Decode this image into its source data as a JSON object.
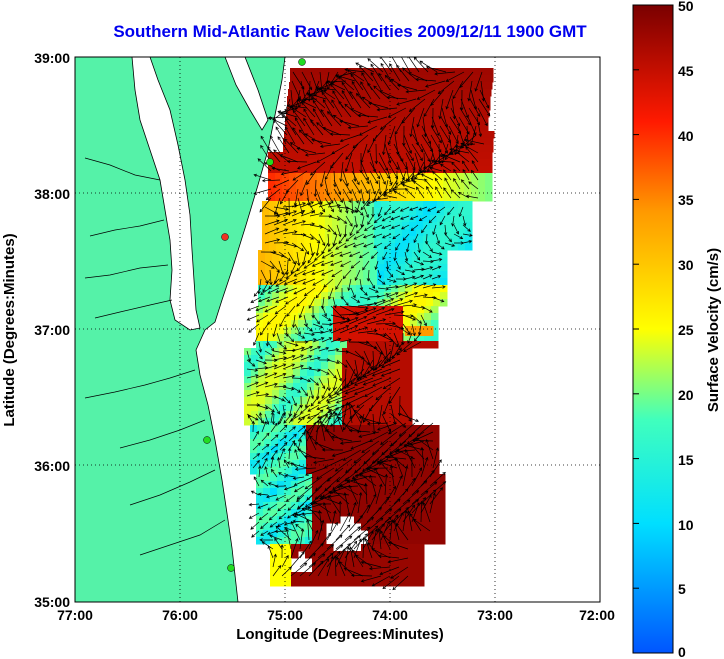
{
  "title": "Southern Mid-Atlantic Raw Velocities 2009/12/11 1900 GMT",
  "xlabel": "Longitude (Degrees:Minutes)",
  "ylabel": "Latitude (Degrees:Minutes)",
  "colorbar_label": "Surface Velocity (cm/s)",
  "x_ticks": [
    "77:00",
    "76:00",
    "75:00",
    "74:00",
    "73:00",
    "72:00"
  ],
  "y_ticks": [
    "39:00",
    "38:00",
    "37:00",
    "36:00",
    "35:00"
  ],
  "colorbar_ticks": [
    "50",
    "45",
    "40",
    "35",
    "30",
    "25",
    "20",
    "15",
    "10",
    "5",
    "0"
  ],
  "colors": {
    "land": "#55f2a8",
    "title": "#0000ee",
    "coast": "#000000"
  },
  "chart_data": {
    "type": "heatmap",
    "title": "Southern Mid-Atlantic Raw Velocities 2009/12/11 1900 GMT",
    "xlabel": "Longitude (Degrees:Minutes)",
    "ylabel": "Latitude (Degrees:Minutes)",
    "xlim": [
      "77:00",
      "72:00"
    ],
    "ylim": [
      "35:00",
      "39:00"
    ],
    "colorbar": {
      "label": "Surface Velocity (cm/s)",
      "range": [
        0,
        50
      ],
      "colormap": "jet"
    },
    "grid": true
  }
}
